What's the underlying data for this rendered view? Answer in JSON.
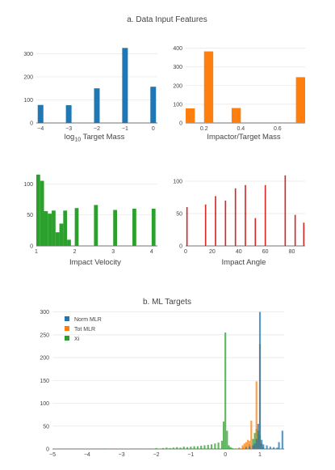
{
  "section_a_title": "a. Data Input Features",
  "section_b_title": "b. ML Targets",
  "colors": {
    "blue": "#1f77b4",
    "orange": "#ff7f0e",
    "green": "#2ca02c",
    "red": "#d62728"
  },
  "chart_data": [
    {
      "type": "bar",
      "id": "log-target-mass",
      "xlabel_main": "log",
      "xlabel_sub": "10",
      "xlabel_rest": " Target Mass",
      "xlim": [
        -4.15,
        0.15
      ],
      "ylim": [
        0,
        340
      ],
      "xticks": [
        -4,
        -3,
        -2,
        -1,
        0
      ],
      "yticks": [
        0,
        100,
        200,
        300
      ],
      "bar_width": 0.2,
      "color": "#1f77b4",
      "bars": [
        {
          "x": -4,
          "y": 78
        },
        {
          "x": -3,
          "y": 77
        },
        {
          "x": -2,
          "y": 150
        },
        {
          "x": -1,
          "y": 325
        },
        {
          "x": 0,
          "y": 157
        }
      ]
    },
    {
      "type": "bar",
      "id": "impactor-target-mass",
      "xlabel": "Impactor/Target Mass",
      "xlim": [
        0.1,
        0.75
      ],
      "ylim": [
        0,
        420
      ],
      "xticks": [
        0.2,
        0.4,
        0.6
      ],
      "yticks": [
        0,
        100,
        200,
        300,
        400
      ],
      "bar_width": 0.05,
      "color": "#ff7f0e",
      "bars": [
        {
          "x": 0.125,
          "y": 78
        },
        {
          "x": 0.225,
          "y": 383
        },
        {
          "x": 0.375,
          "y": 80
        },
        {
          "x": 0.725,
          "y": 245
        }
      ]
    },
    {
      "type": "bar",
      "id": "impact-velocity",
      "xlabel": "Impact Velocity",
      "xlim": [
        1,
        4.15
      ],
      "ylim": [
        0,
        120
      ],
      "xticks": [
        1,
        2,
        3,
        4
      ],
      "yticks": [
        0,
        50,
        100
      ],
      "bar_width": 0.1,
      "color": "#2ca02c",
      "bars": [
        {
          "x": 1.05,
          "y": 115
        },
        {
          "x": 1.15,
          "y": 105
        },
        {
          "x": 1.25,
          "y": 56
        },
        {
          "x": 1.35,
          "y": 52
        },
        {
          "x": 1.45,
          "y": 57
        },
        {
          "x": 1.55,
          "y": 22
        },
        {
          "x": 1.65,
          "y": 36
        },
        {
          "x": 1.75,
          "y": 57
        },
        {
          "x": 1.85,
          "y": 10
        },
        {
          "x": 2.05,
          "y": 61
        },
        {
          "x": 2.55,
          "y": 66
        },
        {
          "x": 3.05,
          "y": 58
        },
        {
          "x": 3.55,
          "y": 60
        },
        {
          "x": 4.05,
          "y": 60
        }
      ]
    },
    {
      "type": "bar",
      "id": "impact-angle",
      "xlabel": "Impact Angle",
      "xlim": [
        0,
        90
      ],
      "ylim": [
        0,
        115
      ],
      "xticks": [
        0,
        20,
        40,
        60,
        80
      ],
      "yticks": [
        0,
        50,
        100
      ],
      "bar_width": 1,
      "color": "#d62728",
      "bars": [
        {
          "x": 1,
          "y": 60
        },
        {
          "x": 15,
          "y": 64
        },
        {
          "x": 22.5,
          "y": 77
        },
        {
          "x": 30,
          "y": 70
        },
        {
          "x": 37.5,
          "y": 89
        },
        {
          "x": 45,
          "y": 94
        },
        {
          "x": 52.5,
          "y": 43
        },
        {
          "x": 60,
          "y": 94
        },
        {
          "x": 75,
          "y": 109
        },
        {
          "x": 82.5,
          "y": 48
        },
        {
          "x": 89,
          "y": 36
        }
      ]
    },
    {
      "type": "bar",
      "id": "ml-targets",
      "xlim": [
        -5,
        1.7
      ],
      "ylim": [
        0,
        310
      ],
      "xticks": [
        -5,
        -4,
        -3,
        -2,
        -1,
        0,
        1
      ],
      "yticks": [
        0,
        50,
        100,
        150,
        200,
        250,
        300
      ],
      "bar_width": 0.05,
      "series": [
        {
          "name": "Xi",
          "color": "#2ca02c",
          "bars": [
            {
              "x": -3.5,
              "y": 1
            },
            {
              "x": -3.0,
              "y": 1
            },
            {
              "x": -2.6,
              "y": 1
            },
            {
              "x": -2.2,
              "y": 1
            },
            {
              "x": -2.0,
              "y": 2
            },
            {
              "x": -1.8,
              "y": 2
            },
            {
              "x": -1.7,
              "y": 3
            },
            {
              "x": -1.6,
              "y": 2
            },
            {
              "x": -1.5,
              "y": 3
            },
            {
              "x": -1.4,
              "y": 4
            },
            {
              "x": -1.3,
              "y": 3
            },
            {
              "x": -1.2,
              "y": 5
            },
            {
              "x": -1.1,
              "y": 4
            },
            {
              "x": -1.0,
              "y": 5
            },
            {
              "x": -0.9,
              "y": 6
            },
            {
              "x": -0.8,
              "y": 6
            },
            {
              "x": -0.7,
              "y": 7
            },
            {
              "x": -0.6,
              "y": 8
            },
            {
              "x": -0.5,
              "y": 9
            },
            {
              "x": -0.4,
              "y": 10
            },
            {
              "x": -0.3,
              "y": 12
            },
            {
              "x": -0.2,
              "y": 14
            },
            {
              "x": -0.1,
              "y": 18
            },
            {
              "x": -0.05,
              "y": 60
            },
            {
              "x": 0.0,
              "y": 255
            },
            {
              "x": 0.05,
              "y": 40
            },
            {
              "x": 0.1,
              "y": 8
            },
            {
              "x": 0.15,
              "y": 4
            },
            {
              "x": 0.2,
              "y": 2
            },
            {
              "x": 0.3,
              "y": 1
            },
            {
              "x": 0.4,
              "y": 2
            },
            {
              "x": 0.5,
              "y": 3
            },
            {
              "x": 0.6,
              "y": 6
            },
            {
              "x": 0.7,
              "y": 10
            },
            {
              "x": 0.8,
              "y": 22
            },
            {
              "x": 0.85,
              "y": 35
            },
            {
              "x": 0.9,
              "y": 44
            },
            {
              "x": 0.95,
              "y": 40
            },
            {
              "x": 1.0,
              "y": 30
            },
            {
              "x": 1.05,
              "y": 12
            },
            {
              "x": 1.1,
              "y": 4
            }
          ]
        },
        {
          "name": "Tot MLR",
          "color": "#ff7f0e",
          "bars": [
            {
              "x": 0.4,
              "y": 3
            },
            {
              "x": 0.5,
              "y": 8
            },
            {
              "x": 0.55,
              "y": 12
            },
            {
              "x": 0.6,
              "y": 15
            },
            {
              "x": 0.65,
              "y": 20
            },
            {
              "x": 0.7,
              "y": 18
            },
            {
              "x": 0.75,
              "y": 62
            },
            {
              "x": 0.8,
              "y": 8
            },
            {
              "x": 0.85,
              "y": 6
            },
            {
              "x": 0.9,
              "y": 148
            },
            {
              "x": 0.95,
              "y": 20
            },
            {
              "x": 1.0,
              "y": 230
            },
            {
              "x": 1.05,
              "y": 5
            }
          ]
        },
        {
          "name": "Norm MLR",
          "color": "#1f77b4",
          "bars": [
            {
              "x": 0.6,
              "y": 3
            },
            {
              "x": 0.7,
              "y": 5
            },
            {
              "x": 0.8,
              "y": 8
            },
            {
              "x": 0.85,
              "y": 12
            },
            {
              "x": 0.9,
              "y": 22
            },
            {
              "x": 0.95,
              "y": 55
            },
            {
              "x": 1.0,
              "y": 300
            },
            {
              "x": 1.05,
              "y": 20
            },
            {
              "x": 1.1,
              "y": 10
            },
            {
              "x": 1.2,
              "y": 8
            },
            {
              "x": 1.3,
              "y": 5
            },
            {
              "x": 1.4,
              "y": 4
            },
            {
              "x": 1.5,
              "y": 3
            },
            {
              "x": 1.55,
              "y": 15
            },
            {
              "x": 1.65,
              "y": 40
            }
          ]
        }
      ],
      "legend": [
        "Norm MLR",
        "Tot MLR",
        "Xi"
      ]
    }
  ]
}
